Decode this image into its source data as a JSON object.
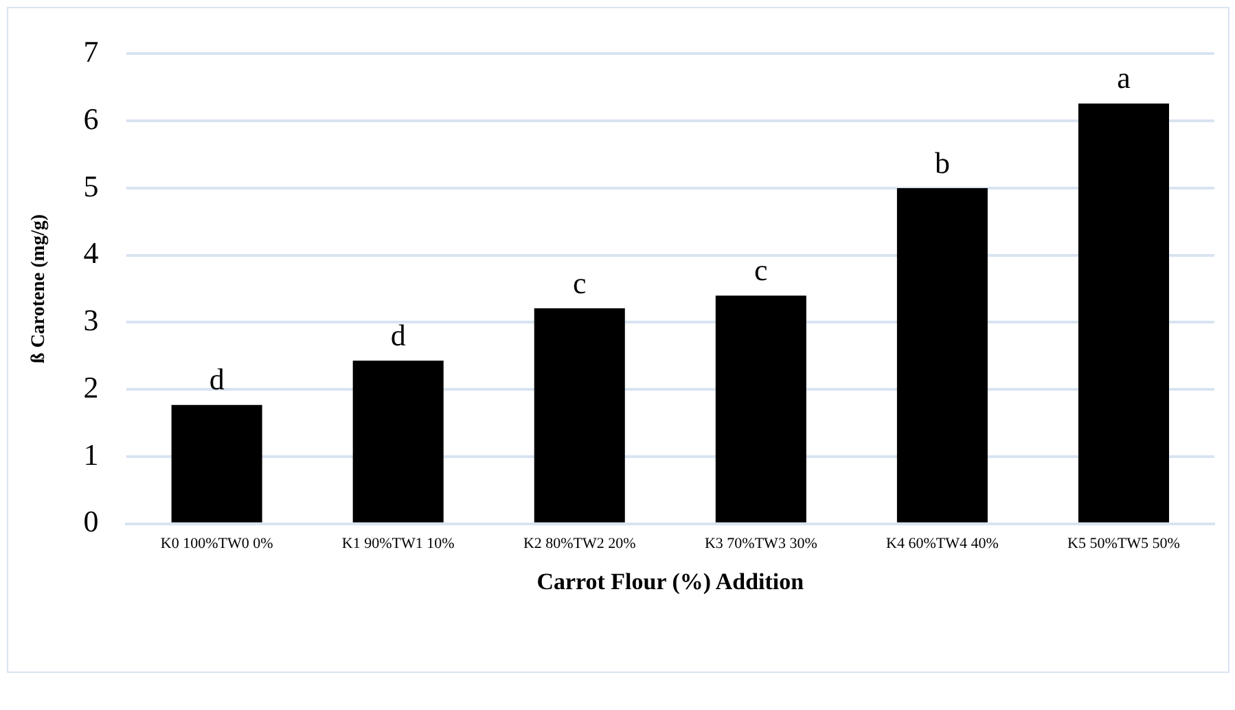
{
  "chart_data": {
    "type": "bar",
    "xlabel": "Carrot Flour (%) Addition",
    "ylabel": "ß Carotene (mg/g)",
    "categories": [
      "K0 100%TW0 0%",
      "K1 90%TW1 10%",
      "K2 80%TW2 20%",
      "K3 70%TW3 30%",
      "K4 60%TW4 40%",
      "K5 50%TW5 50%"
    ],
    "values": [
      1.77,
      2.43,
      3.21,
      3.4,
      5.0,
      6.26
    ],
    "color": "#000000",
    "ylim": [
      0,
      7
    ],
    "yticks": [
      0,
      1,
      2,
      3,
      4,
      5,
      6,
      7
    ],
    "grid": "y",
    "annotations": [
      {
        "text": "d",
        "x": "K0 100%TW0 0%",
        "y": 1.77
      },
      {
        "text": "d",
        "x": "K1 90%TW1 10%",
        "y": 2.43
      },
      {
        "text": "c",
        "x": "K2 80%TW2 20%",
        "y": 3.21
      },
      {
        "text": "c",
        "x": "K3 70%TW3 30%",
        "y": 3.4
      },
      {
        "text": "b",
        "x": "K4 60%TW4 40%",
        "y": 5.0
      },
      {
        "text": "a",
        "x": "K5 50%TW5 50%",
        "y": 6.26
      }
    ]
  }
}
